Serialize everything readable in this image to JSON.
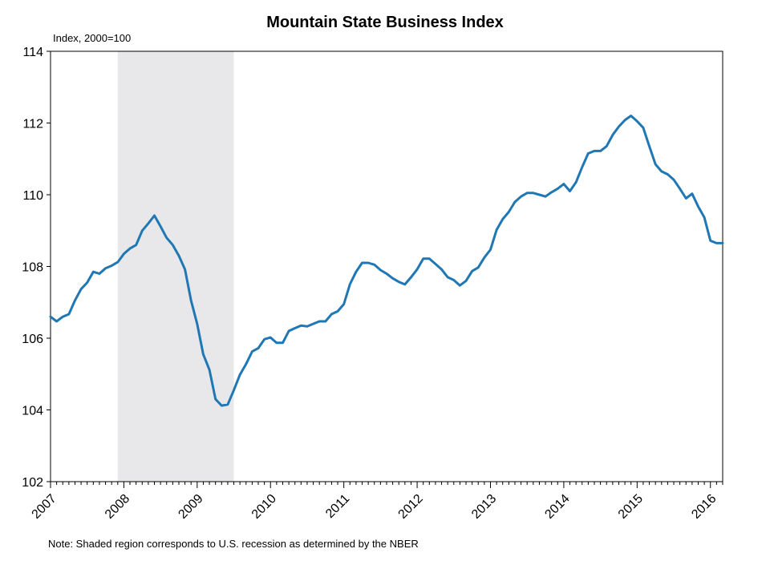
{
  "chart_data": {
    "type": "line",
    "title": "Mountain State Business Index",
    "ylabel": "Index, 2000=100",
    "note": "Note: Shaded region corresponds to U.S. recession as determined by the NBER",
    "ylim": [
      102,
      114
    ],
    "yticks": [
      102,
      104,
      106,
      108,
      110,
      112,
      114
    ],
    "xlim": [
      2007.0,
      2016.167
    ],
    "xticks": [
      "2007",
      "2008",
      "2009",
      "2010",
      "2011",
      "2012",
      "2013",
      "2014",
      "2015",
      "2016"
    ],
    "recession": {
      "start": 2007.917,
      "end": 2009.5
    },
    "colors": {
      "line": "#1f77b4",
      "recession": "#e8e8ea",
      "axis": "#000000"
    },
    "series": [
      {
        "x": [
          2007.0,
          2007.083,
          2007.167,
          2007.25,
          2007.333,
          2007.417,
          2007.5,
          2007.583,
          2007.667,
          2007.75,
          2007.833,
          2007.917,
          2008.0,
          2008.083,
          2008.167,
          2008.25,
          2008.333,
          2008.417,
          2008.5,
          2008.583,
          2008.667,
          2008.75,
          2008.833,
          2008.917,
          2009.0,
          2009.083,
          2009.167,
          2009.25,
          2009.333,
          2009.417,
          2009.5,
          2009.583,
          2009.667,
          2009.75,
          2009.833,
          2009.917,
          2010.0,
          2010.083,
          2010.167,
          2010.25,
          2010.333,
          2010.417,
          2010.5,
          2010.583,
          2010.667,
          2010.75,
          2010.833,
          2010.917,
          2011.0,
          2011.083,
          2011.167,
          2011.25,
          2011.333,
          2011.417,
          2011.5,
          2011.583,
          2011.667,
          2011.75,
          2011.833,
          2011.917,
          2012.0,
          2012.083,
          2012.167,
          2012.25,
          2012.333,
          2012.417,
          2012.5,
          2012.583,
          2012.667,
          2012.75,
          2012.833,
          2012.917,
          2013.0,
          2013.083,
          2013.167,
          2013.25,
          2013.333,
          2013.417,
          2013.5,
          2013.583,
          2013.667,
          2013.75,
          2013.833,
          2013.917,
          2014.0,
          2014.083,
          2014.167,
          2014.25,
          2014.333,
          2014.417,
          2014.5,
          2014.583,
          2014.667,
          2014.75,
          2014.833,
          2014.917,
          2015.0,
          2015.083,
          2015.167,
          2015.25,
          2015.333,
          2015.417,
          2015.5,
          2015.583,
          2015.667,
          2015.75,
          2015.833,
          2015.917,
          2016.0,
          2016.083,
          2016.167
        ],
        "values": [
          106.6,
          106.47,
          106.6,
          106.67,
          107.05,
          107.37,
          107.55,
          107.85,
          107.8,
          107.95,
          108.02,
          108.12,
          108.35,
          108.5,
          108.6,
          109.0,
          109.2,
          109.42,
          109.12,
          108.8,
          108.6,
          108.3,
          107.92,
          107.05,
          106.4,
          105.55,
          105.12,
          104.3,
          104.12,
          104.15,
          104.55,
          104.98,
          105.28,
          105.63,
          105.72,
          105.97,
          106.02,
          105.87,
          105.87,
          106.2,
          106.28,
          106.35,
          106.33,
          106.4,
          106.47,
          106.47,
          106.67,
          106.75,
          106.95,
          107.5,
          107.85,
          108.1,
          108.1,
          108.05,
          107.9,
          107.8,
          107.67,
          107.57,
          107.5,
          107.7,
          107.92,
          108.22,
          108.22,
          108.07,
          107.92,
          107.7,
          107.62,
          107.47,
          107.6,
          107.87,
          107.97,
          108.25,
          108.47,
          109.02,
          109.32,
          109.52,
          109.8,
          109.95,
          110.05,
          110.05,
          110.0,
          109.95,
          110.07,
          110.17,
          110.3,
          110.1,
          110.35,
          110.77,
          111.15,
          111.22,
          111.22,
          111.35,
          111.67,
          111.9,
          112.08,
          112.2,
          112.05,
          111.87,
          111.35,
          110.85,
          110.65,
          110.57,
          110.42,
          110.17,
          109.9,
          110.03,
          109.67,
          109.37,
          108.72,
          108.65,
          108.65
        ]
      }
    ]
  }
}
